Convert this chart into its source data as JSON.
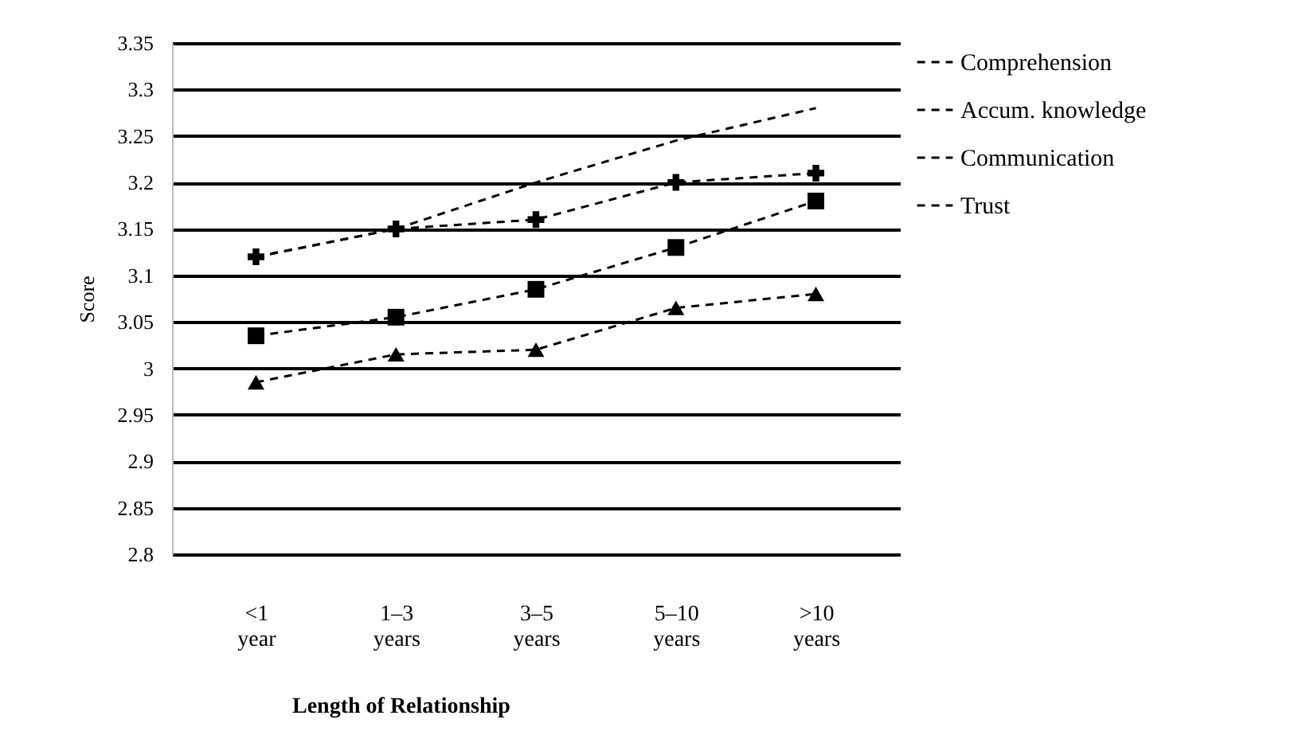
{
  "chart_data": {
    "type": "line",
    "xlabel": "Length of Relationship",
    "ylabel": "Score",
    "categories": [
      "<1 year",
      "1–3 years",
      "3–5 years",
      "5–10 years",
      ">10 years"
    ],
    "series": [
      {
        "name": "Comprehension",
        "color": "#000000",
        "marker": "cross",
        "values": [
          3.12,
          3.15,
          3.16,
          3.2,
          3.21
        ]
      },
      {
        "name": "Accum. knowledge",
        "color": "#000000",
        "marker": "none",
        "values": [
          3.12,
          3.15,
          3.2,
          3.245,
          3.28
        ]
      },
      {
        "name": "Communication",
        "color": "#000000",
        "marker": "triangle",
        "values": [
          2.985,
          3.015,
          3.02,
          3.065,
          3.08
        ]
      },
      {
        "name": "Trust",
        "color": "#000000",
        "marker": "square",
        "values": [
          3.035,
          3.055,
          3.085,
          3.13,
          3.18
        ]
      }
    ],
    "ylim": [
      2.8,
      3.35
    ],
    "yticks": [
      2.8,
      2.85,
      2.9,
      2.95,
      3,
      3.05,
      3.1,
      3.15,
      3.2,
      3.25,
      3.3,
      3.35
    ],
    "grid": "y",
    "legend": "right",
    "line_style": "dashed"
  }
}
